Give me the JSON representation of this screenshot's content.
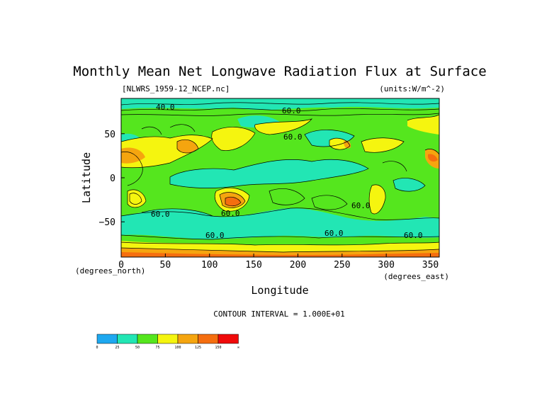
{
  "chart_data": {
    "type": "heatmap",
    "title": "Monthly Mean Net Longwave Radiation Flux at Surface",
    "file_label": "[NLWRS_1959-12_NCEP.nc]",
    "units_label": "(units:W/m^-2)",
    "xlabel": "Longitude",
    "ylabel": "Latitude",
    "x_units_label": "(degrees_east)",
    "y_units_label": "(degrees_north)",
    "xlim": [
      0,
      360
    ],
    "ylim": [
      -90,
      90
    ],
    "xticks": [
      0,
      50,
      100,
      150,
      200,
      250,
      300,
      350
    ],
    "yticks": [
      50,
      0,
      -50
    ],
    "ytick_labels": [
      "50",
      "0",
      "−50"
    ],
    "contour_interval_label": "CONTOUR INTERVAL = 1.000E+01",
    "contour_labels": [
      "40.0",
      "60.0",
      "60.0",
      "60.0",
      "60.0",
      "60.0",
      "60.0",
      "60.0",
      "60.0"
    ],
    "colorbar": {
      "ticks": [
        "0",
        "25",
        "50",
        "75",
        "100",
        "125",
        "150",
        "∞"
      ],
      "colors": [
        "#1ea8f0",
        "#22e6b4",
        "#55e61e",
        "#f5f50f",
        "#f5a50f",
        "#f56e0f",
        "#f00a0a"
      ]
    },
    "dominant_field_colors": {
      "low": "#22e6b4",
      "mid": "#55e61e",
      "high": "#f5f50f",
      "very_high": "#f5a50f",
      "peak": "#f56e0f"
    }
  }
}
